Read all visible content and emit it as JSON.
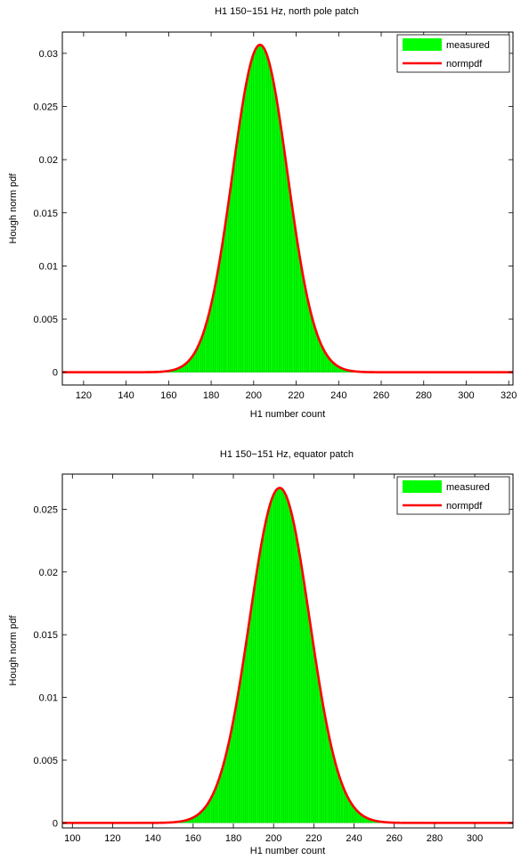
{
  "chart_data": [
    {
      "type": "area",
      "title": "H1 150−151 Hz, north pole patch",
      "xlabel": "H1 number count",
      "ylabel": "Hough norm pdf",
      "xlim": [
        110,
        322
      ],
      "ylim": [
        -0.0012,
        0.032
      ],
      "xticks": [
        120,
        140,
        160,
        180,
        200,
        220,
        240,
        260,
        280,
        300,
        320
      ],
      "yticks": [
        0,
        0.005,
        0.01,
        0.015,
        0.02,
        0.025,
        0.03
      ],
      "ytick_labels": [
        "0",
        "0.005",
        "0.01",
        "0.015",
        "0.02",
        "0.025",
        "0.03"
      ],
      "grid": false,
      "legend_position": "top-right",
      "series": [
        {
          "name": "measured",
          "kind": "histogram",
          "color": "#00ff00",
          "bin_width": 1,
          "bin_range": [
            150,
            260
          ],
          "mean": 203,
          "sd": 12.9,
          "peak": 0.0308
        },
        {
          "name": "normpdf",
          "kind": "line",
          "color": "#ff0000",
          "mean": 203,
          "sd": 12.95,
          "peak": 0.0308,
          "x_range": [
            110,
            322
          ]
        }
      ]
    },
    {
      "type": "area",
      "title": "H1 150−151 Hz, equator patch",
      "xlabel": "H1 number count",
      "ylabel": "Hough norm pdf",
      "xlim": [
        95,
        319
      ],
      "ylim": [
        -0.0004,
        0.0278
      ],
      "xticks": [
        100,
        120,
        140,
        160,
        180,
        200,
        220,
        240,
        260,
        280,
        300
      ],
      "yticks": [
        0,
        0.005,
        0.01,
        0.015,
        0.02,
        0.025
      ],
      "ytick_labels": [
        "0",
        "0.005",
        "0.01",
        "0.015",
        "0.02",
        "0.025"
      ],
      "grid": false,
      "legend_position": "top-right",
      "series": [
        {
          "name": "measured",
          "kind": "histogram",
          "color": "#00ff00",
          "bin_width": 1,
          "bin_range": [
            145,
            265
          ],
          "mean": 203,
          "sd": 14.9,
          "peak": 0.0267
        },
        {
          "name": "normpdf",
          "kind": "line",
          "color": "#ff0000",
          "mean": 203,
          "sd": 14.95,
          "peak": 0.0267,
          "x_range": [
            95,
            319
          ]
        }
      ]
    }
  ]
}
